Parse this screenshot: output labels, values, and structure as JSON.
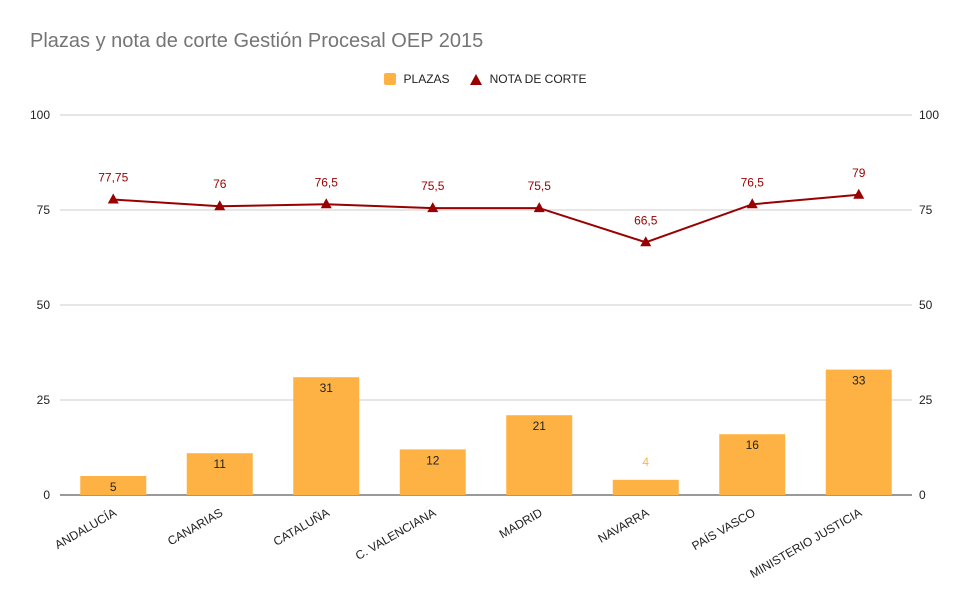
{
  "chart_data": {
    "type": "bar+line",
    "title": "Plazas y nota de corte Gestión Procesal OEP 2015",
    "categories": [
      "ANDALUCÍA",
      "CANARIAS",
      "CATALUÑA",
      "C. VALENCIANA",
      "MADRID",
      "NAVARRA",
      "PAÍS VASCO",
      "MINISTERIO JUSTICIA"
    ],
    "series": [
      {
        "name": "PLAZAS",
        "type": "bar",
        "values": [
          5,
          11,
          31,
          12,
          21,
          4,
          16,
          33
        ],
        "labels": [
          "5",
          "11",
          "31",
          "12",
          "21",
          "4",
          "16",
          "33"
        ],
        "color": "#ffb244"
      },
      {
        "name": "NOTA DE CORTE",
        "type": "line",
        "values": [
          77.75,
          76,
          76.5,
          75.5,
          75.5,
          66.5,
          76.5,
          79
        ],
        "labels": [
          "77,75",
          "76",
          "76,5",
          "75,5",
          "75,5",
          "66,5",
          "76,5",
          "79"
        ],
        "color": "#990000"
      }
    ],
    "ylim": [
      0,
      100
    ],
    "yticks": [
      "0",
      "25",
      "50",
      "75",
      "100"
    ],
    "yticks_values": [
      0,
      25,
      50,
      75,
      100
    ],
    "legend_position": "top",
    "grid": true
  }
}
